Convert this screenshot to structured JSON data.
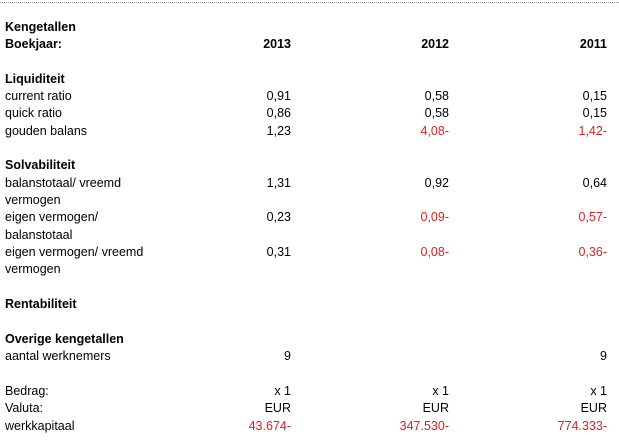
{
  "title": "Kengetallen",
  "header": {
    "label": "Boekjaar:",
    "years": [
      2013,
      2012,
      2011
    ]
  },
  "sections": [
    {
      "title": "Liquiditeit",
      "rows": [
        {
          "label": [
            "current ratio"
          ],
          "values": [
            "0,91",
            "0,58",
            "0,15"
          ]
        },
        {
          "label": [
            "quick ratio"
          ],
          "values": [
            "0,86",
            "0,58",
            "0,15"
          ]
        },
        {
          "label": [
            "gouden balans"
          ],
          "values": [
            "1,23",
            "4,08-",
            "1,42-"
          ]
        }
      ]
    },
    {
      "title": "Solvabiliteit",
      "rows": [
        {
          "label": [
            "balanstotaal/ vreemd",
            "vermogen"
          ],
          "values": [
            "1,31",
            "0,92",
            "0,64"
          ]
        },
        {
          "label": [
            "eigen vermogen/",
            "balanstotaal"
          ],
          "values": [
            "0,23",
            "0,09-",
            "0,57-"
          ]
        },
        {
          "label": [
            "eigen vermogen/ vreemd",
            "vermogen"
          ],
          "values": [
            "0,31",
            "0,08-",
            "0,36-"
          ]
        }
      ]
    },
    {
      "title": "Rentabiliteit",
      "rows": []
    },
    {
      "title": "Overige kengetallen",
      "rows": [
        {
          "label": [
            "aantal werknemers"
          ],
          "values": [
            "9",
            null,
            "9"
          ]
        }
      ]
    }
  ],
  "footer": [
    {
      "label": [
        "Bedrag:"
      ],
      "values": [
        "x 1",
        "x 1",
        "x 1"
      ]
    },
    {
      "label": [
        "Valuta:"
      ],
      "values": [
        "EUR",
        "EUR",
        "EUR"
      ]
    },
    {
      "label": [
        "werkkapitaal"
      ],
      "values": [
        "43.674-",
        "347.530-",
        "774.333-"
      ]
    }
  ]
}
